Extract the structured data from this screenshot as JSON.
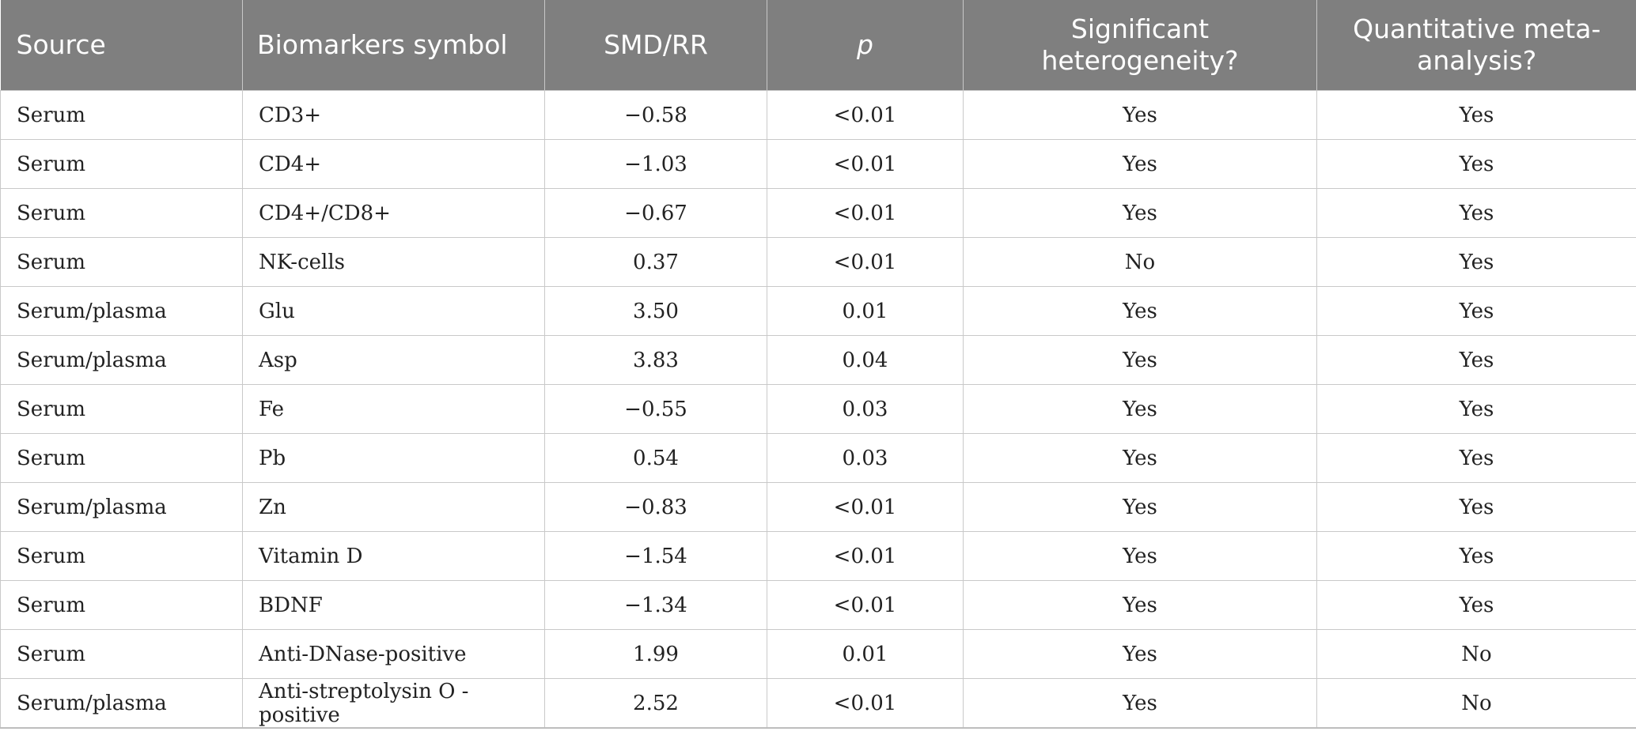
{
  "table": {
    "headers": [
      [
        "Source"
      ],
      [
        "Biomarkers symbol"
      ],
      [
        "SMD/RR"
      ],
      [
        "p"
      ],
      [
        "Significant",
        "heterogeneity?"
      ],
      [
        "Quantitative meta-",
        "analysis?"
      ]
    ],
    "rows": [
      [
        "Serum",
        "CD3+",
        "−0.58",
        "<0.01",
        "Yes",
        "Yes"
      ],
      [
        "Serum",
        "CD4+",
        "−1.03",
        "<0.01",
        "Yes",
        "Yes"
      ],
      [
        "Serum",
        "CD4+/CD8+",
        "−0.67",
        "<0.01",
        "Yes",
        "Yes"
      ],
      [
        "Serum",
        "NK-cells",
        "0.37",
        "<0.01",
        "No",
        "Yes"
      ],
      [
        "Serum/plasma",
        "Glu",
        "3.50",
        "0.01",
        "Yes",
        "Yes"
      ],
      [
        "Serum/plasma",
        "Asp",
        "3.83",
        "0.04",
        "Yes",
        "Yes"
      ],
      [
        "Serum",
        "Fe",
        "−0.55",
        "0.03",
        "Yes",
        "Yes"
      ],
      [
        "Serum",
        "Pb",
        "0.54",
        "0.03",
        "Yes",
        "Yes"
      ],
      [
        "Serum/plasma",
        "Zn",
        "−0.83",
        "<0.01",
        "Yes",
        "Yes"
      ],
      [
        "Serum",
        "Vitamin D",
        "−1.54",
        "<0.01",
        "Yes",
        "Yes"
      ],
      [
        "Serum",
        "BDNF",
        "−1.34",
        "<0.01",
        "Yes",
        "Yes"
      ],
      [
        "Serum",
        "Anti-DNase-positive",
        "1.99",
        "0.01",
        "Yes",
        "No"
      ],
      [
        "Serum/plasma",
        "Anti-streptolysin O -positive",
        "2.52",
        "<0.01",
        "Yes",
        "No"
      ]
    ]
  },
  "colors": {
    "header_background": "#7f7f7f",
    "header_text": "#ffffff",
    "grid_line": "#c9c9c9"
  }
}
